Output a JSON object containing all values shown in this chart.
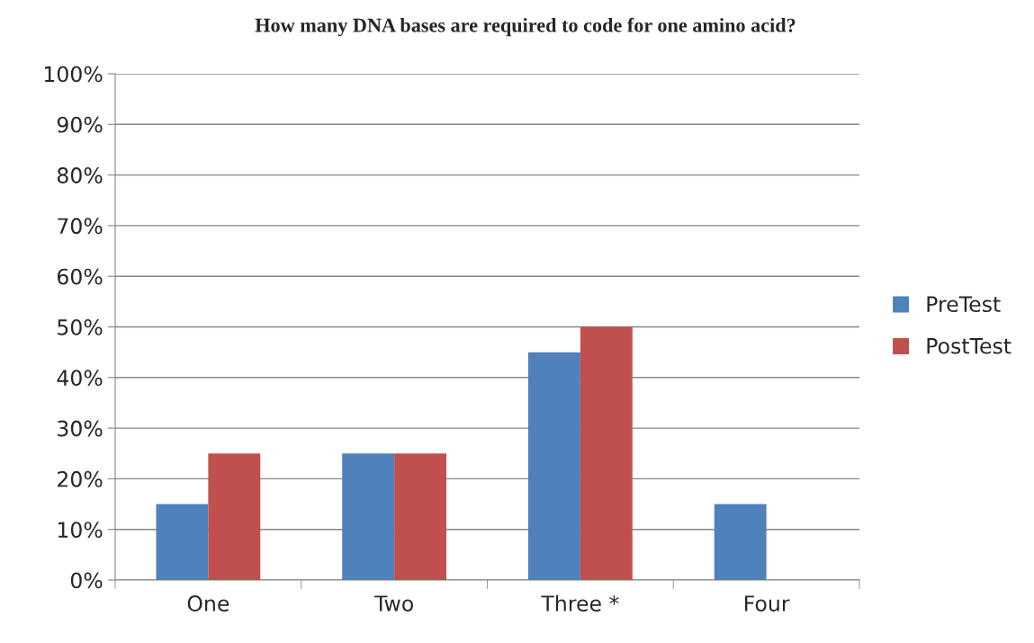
{
  "chart_data": {
    "type": "bar",
    "title": "How many DNA bases are required to code for one amino acid?",
    "categories": [
      "One",
      "Two",
      "Three *",
      "Four"
    ],
    "series": [
      {
        "name": "PreTest",
        "color": "#4f81bd",
        "values": [
          15,
          25,
          45,
          15
        ]
      },
      {
        "name": "PostTest",
        "color": "#c0504d",
        "values": [
          25,
          25,
          50,
          null
        ]
      }
    ],
    "ylim": [
      0,
      100
    ],
    "yticks": [
      {
        "value": 0,
        "label": "0%"
      },
      {
        "value": 10,
        "label": "10%"
      },
      {
        "value": 20,
        "label": "20%"
      },
      {
        "value": 30,
        "label": "30%"
      },
      {
        "value": 40,
        "label": "40%"
      },
      {
        "value": 50,
        "label": "50%"
      },
      {
        "value": 60,
        "label": "60%"
      },
      {
        "value": 70,
        "label": "70%"
      },
      {
        "value": 80,
        "label": "80%"
      },
      {
        "value": 90,
        "label": "90%"
      },
      {
        "value": 100,
        "label": "100%"
      }
    ],
    "grid": "y",
    "legend": "right"
  }
}
